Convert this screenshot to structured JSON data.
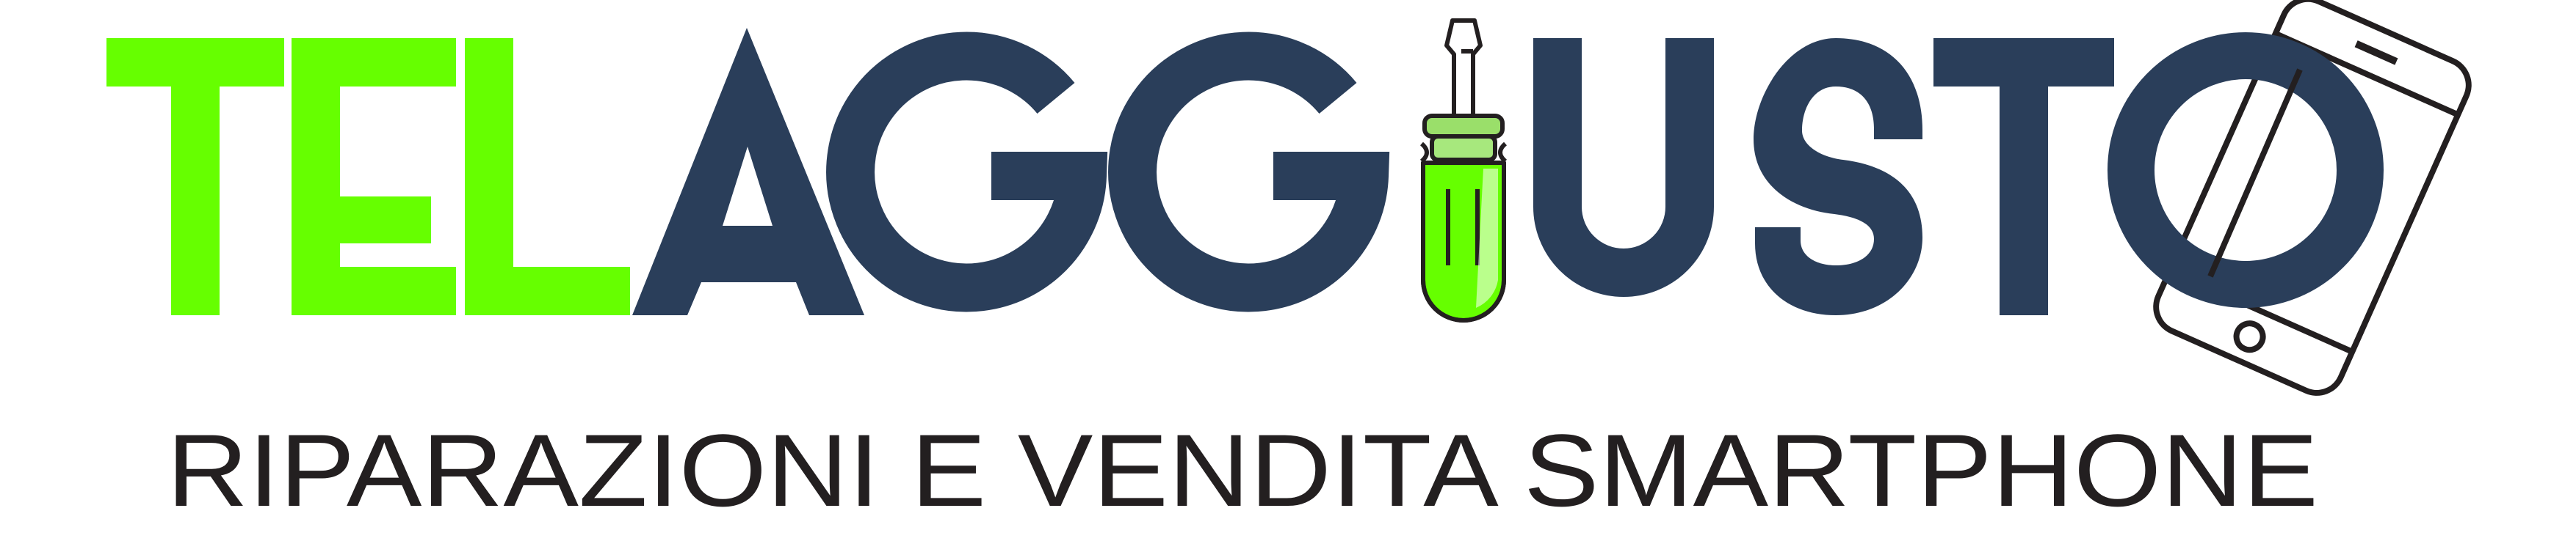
{
  "brand": {
    "wordmark_left": "TEL",
    "wordmark_right": "AGGIUSTO",
    "tagline": "RIPARAZIONI E VENDITA SMARTPHONE"
  },
  "colors": {
    "green": "#66ff00",
    "navy": "#2a3e5a",
    "ink": "#231f20",
    "background": "#ffffff"
  },
  "icons": [
    "screwdriver-icon",
    "smartphone-icon"
  ]
}
